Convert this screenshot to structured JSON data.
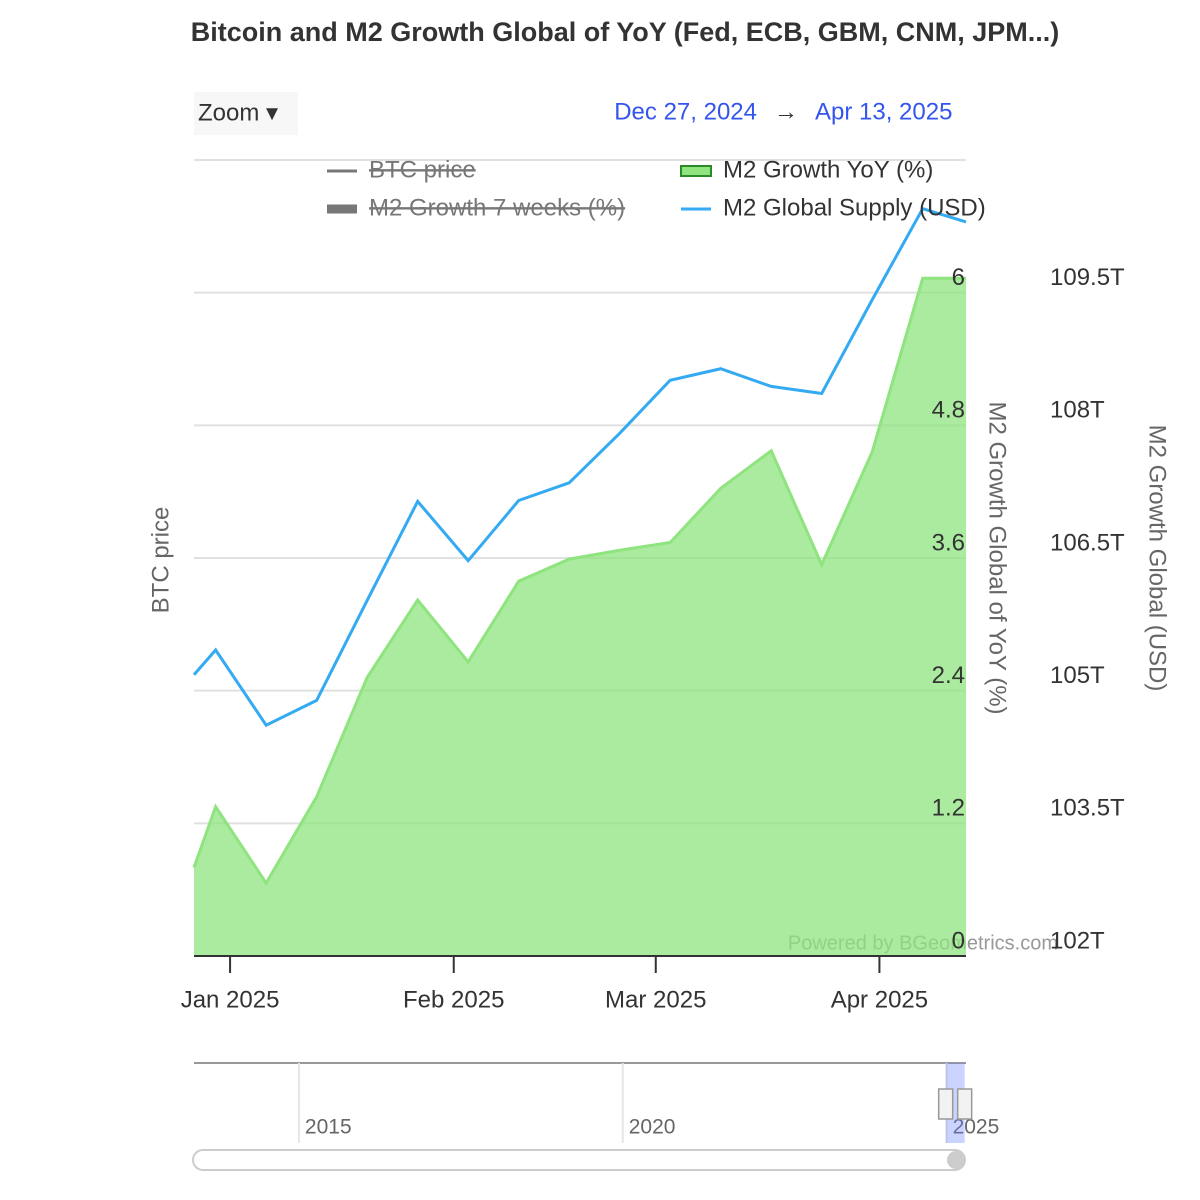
{
  "chart_data": {
    "type": "line",
    "title": "Bitcoin and M2 Growth Global of YoY (Fed, ECB, GBM, CNM, JPM...)",
    "zoom_button": "Zoom ▾",
    "range_start": "Dec 27, 2024",
    "range_separator": "→",
    "range_end": "Apr 13, 2025",
    "x": [
      "2024-12-27",
      "2024-12-30",
      "2025-01-06",
      "2025-01-13",
      "2025-01-20",
      "2025-01-27",
      "2025-02-03",
      "2025-02-10",
      "2025-02-17",
      "2025-02-24",
      "2025-03-03",
      "2025-03-10",
      "2025-03-17",
      "2025-03-24",
      "2025-03-31",
      "2025-04-07",
      "2025-04-13"
    ],
    "xlim": [
      "2024-12-27",
      "2025-04-13"
    ],
    "xticks": [
      {
        "value": "2025-01-01",
        "label": "Jan 2025"
      },
      {
        "value": "2025-02-01",
        "label": "Feb 2025"
      },
      {
        "value": "2025-03-01",
        "label": "Mar 2025"
      },
      {
        "value": "2025-04-01",
        "label": "Apr 2025"
      }
    ],
    "series": [
      {
        "name": "BTC price",
        "color": "#666666",
        "hidden": true,
        "values": [
          null,
          null,
          null,
          null,
          null,
          null,
          null,
          null,
          null,
          null,
          null,
          null,
          null,
          null,
          null,
          null,
          null
        ]
      },
      {
        "name": "M2 Growth 7 weeks (%)",
        "color": "#888888",
        "hidden": true,
        "values": [
          null,
          null,
          null,
          null,
          null,
          null,
          null,
          null,
          null,
          null,
          null,
          null,
          null,
          null,
          null,
          null,
          null
        ]
      },
      {
        "name": "M2 Growth YoY (%)",
        "color": "#8fe47f",
        "type": "area",
        "values": [
          0.8,
          1.35,
          0.66,
          1.44,
          2.52,
          3.22,
          2.66,
          3.39,
          3.59,
          3.67,
          3.74,
          4.23,
          4.57,
          3.54,
          4.56,
          6.13,
          6.13
        ]
      },
      {
        "name": "M2 Global Supply (USD)",
        "color": "#33aaf2",
        "axis": "y2",
        "values": [
          105.18,
          105.46,
          104.61,
          104.89,
          106.02,
          107.14,
          106.47,
          107.15,
          107.35,
          107.91,
          108.51,
          108.64,
          108.44,
          108.36,
          109.42,
          110.45,
          110.3
        ]
      }
    ],
    "ylim": [
      0,
      7.2
    ],
    "yticks": [
      0,
      1.2,
      2.4,
      3.6,
      4.8,
      6
    ],
    "y2lim": [
      102,
      111
    ],
    "y2ticks": [
      {
        "value": 102,
        "label": "102T"
      },
      {
        "value": 103.5,
        "label": "103.5T"
      },
      {
        "value": 105,
        "label": "105T"
      },
      {
        "value": 106.5,
        "label": "106.5T"
      },
      {
        "value": 108,
        "label": "108T"
      },
      {
        "value": 109.5,
        "label": "109.5T"
      }
    ],
    "ylabel": "M2 Growth Global of YoY (%)",
    "y2label": "M2 Growth Global (USD)",
    "y3label": "BTC price",
    "grid": true,
    "credits": "Powered by BGeometrics.com",
    "navigator": {
      "xlim": [
        2013.38,
        2025.3
      ],
      "xticks": [
        2015,
        2020,
        2025
      ]
    }
  }
}
